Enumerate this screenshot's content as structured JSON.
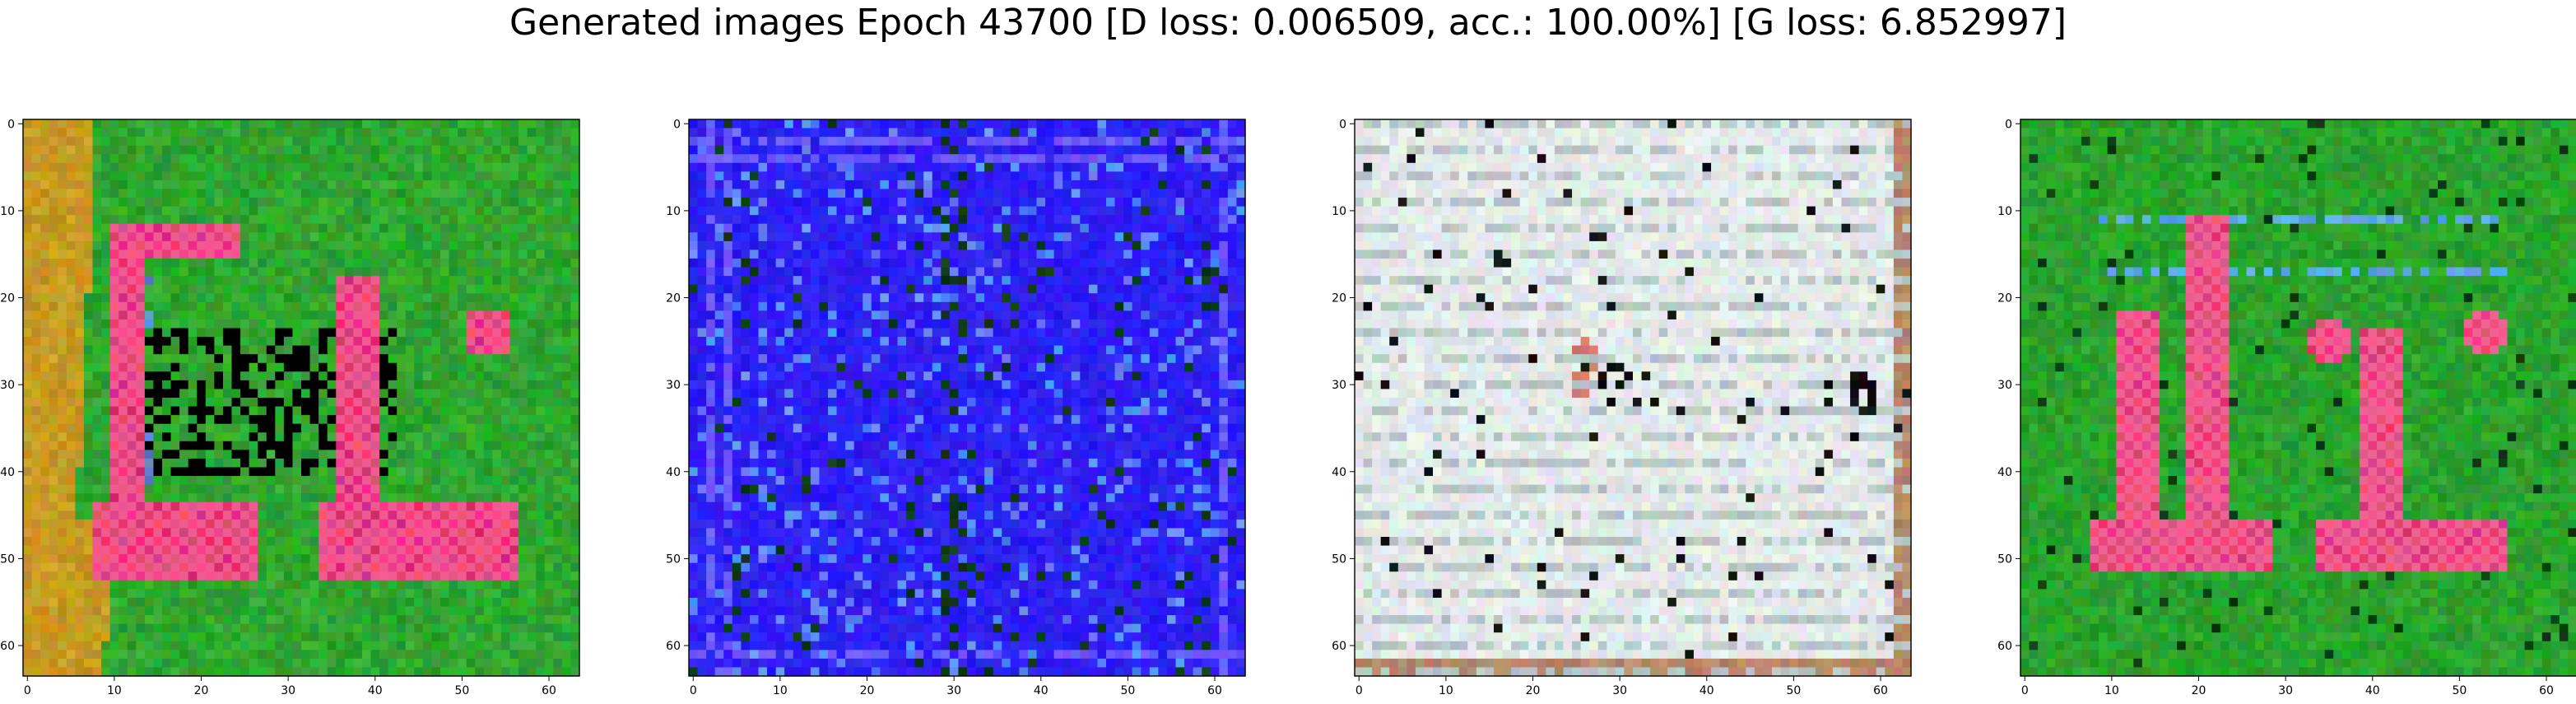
{
  "figure": {
    "title": "Generated images Epoch 43700 [D loss: 0.006509, acc.: 100.00%] [G loss: 6.852997]"
  },
  "chart_data": [
    {
      "type": "heatmap",
      "title": "",
      "xlim": [
        0,
        63
      ],
      "ylim": [
        63,
        0
      ],
      "xticks": [
        0,
        10,
        20,
        30,
        40,
        50,
        60
      ],
      "yticks": [
        0,
        10,
        20,
        30,
        40,
        50,
        60
      ],
      "content": "generated 64x64 image: pink and red blocky letter-like shapes on green background with olive-yellow left edge",
      "colors": {
        "background": "#2fa52f",
        "edge": "#c79a22",
        "shape": "#e83c7c",
        "accent": "#4d8ad8"
      }
    },
    {
      "type": "heatmap",
      "title": "",
      "xlim": [
        0,
        63
      ],
      "ylim": [
        63,
        0
      ],
      "xticks": [
        0,
        10,
        20,
        30,
        40,
        50,
        60
      ],
      "yticks": [
        0,
        10,
        20,
        30,
        40,
        50,
        60
      ],
      "content": "generated 64x64 image: bright blue field with dark speckles and faint inner frame",
      "colors": {
        "background": "#2d1ff2",
        "speckle": "#0c3a14",
        "frame": "#6a5cff"
      }
    },
    {
      "type": "heatmap",
      "title": "",
      "xlim": [
        0,
        63
      ],
      "ylim": [
        63,
        0
      ],
      "xticks": [
        0,
        10,
        20,
        30,
        40,
        50,
        60
      ],
      "yticks": [
        0,
        10,
        20,
        30,
        40,
        50,
        60
      ],
      "content": "generated 64x64 image: pale grey-white noisy field with dark spots near center",
      "colors": {
        "background": "#e4ebea",
        "stripe": "#b9c6c6",
        "spot": "#111111",
        "accent": "#d6786e"
      }
    },
    {
      "type": "heatmap",
      "title": "",
      "xlim": [
        0,
        63
      ],
      "ylim": [
        63,
        0
      ],
      "xticks": [
        0,
        10,
        20,
        30,
        40,
        50,
        60
      ],
      "yticks": [
        0,
        10,
        20,
        30,
        40,
        50,
        60
      ],
      "content": "generated 64x64 image: pink-red vertical glyph shapes on green background",
      "colors": {
        "background": "#2aa22c",
        "shape": "#e8447e",
        "accent": "#5aa8e6"
      }
    }
  ]
}
